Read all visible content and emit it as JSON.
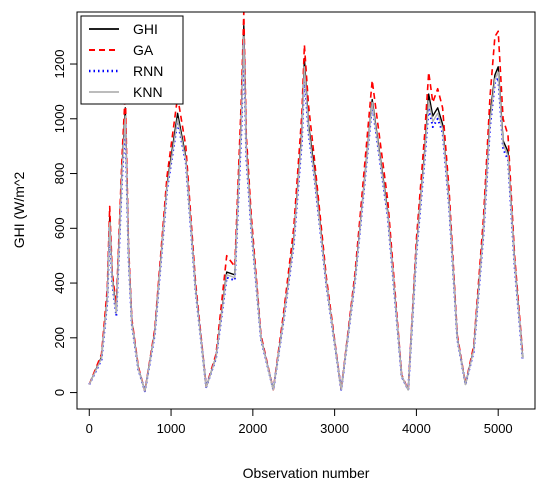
{
  "chart_data": {
    "type": "line",
    "title": "",
    "xlabel": "Observation number",
    "ylabel": "GHI (W/m^2",
    "xlim": [
      -150,
      5450
    ],
    "ylim": [
      -60,
      1390
    ],
    "xticks": [
      0,
      1000,
      2000,
      3000,
      4000,
      5000
    ],
    "yticks": [
      0,
      200,
      400,
      600,
      800,
      1000,
      1200
    ],
    "xtick_labels": [
      "0",
      "1000",
      "2000",
      "3000",
      "4000",
      "5000"
    ],
    "ytick_labels": [
      "0",
      "200",
      "400",
      "600",
      "800",
      "1000",
      "1200"
    ],
    "grid": false,
    "legend_position": "top-left",
    "series": [
      {
        "name": "GHI",
        "color": "#000000",
        "style": "solid",
        "x": [
          0,
          150,
          220,
          250,
          280,
          330,
          400,
          440,
          480,
          520,
          600,
          680,
          800,
          950,
          1080,
          1180,
          1300,
          1430,
          1550,
          1680,
          1780,
          1860,
          1890,
          1920,
          1980,
          2100,
          2250,
          2380,
          2500,
          2600,
          2630,
          2680,
          2750,
          2900,
          3080,
          3250,
          3460,
          3650,
          3820,
          3900,
          4000,
          4100,
          4150,
          4200,
          4260,
          4320,
          4400,
          4500,
          4600,
          4700,
          4820,
          4900,
          4960,
          5000,
          5060,
          5120,
          5200,
          5300
        ],
        "y": [
          30,
          130,
          350,
          640,
          420,
          300,
          820,
          1040,
          520,
          260,
          90,
          5,
          220,
          760,
          1020,
          860,
          380,
          20,
          130,
          440,
          430,
          1010,
          1340,
          900,
          620,
          200,
          10,
          280,
          560,
          960,
          1220,
          980,
          820,
          400,
          10,
          420,
          1070,
          660,
          60,
          10,
          530,
          880,
          1090,
          1010,
          1040,
          980,
          700,
          200,
          30,
          160,
          600,
          1010,
          1160,
          1190,
          920,
          880,
          480,
          130
        ]
      },
      {
        "name": "GA",
        "color": "#ff0000",
        "style": "dashed",
        "x": [
          0,
          150,
          220,
          250,
          280,
          330,
          400,
          440,
          480,
          520,
          600,
          680,
          800,
          950,
          1080,
          1180,
          1300,
          1430,
          1550,
          1680,
          1780,
          1860,
          1890,
          1920,
          1980,
          2100,
          2250,
          2380,
          2500,
          2600,
          2630,
          2680,
          2750,
          2900,
          3080,
          3250,
          3460,
          3650,
          3820,
          3900,
          4000,
          4100,
          4150,
          4200,
          4260,
          4320,
          4400,
          4500,
          4600,
          4700,
          4820,
          4900,
          4960,
          5000,
          5060,
          5120,
          5200,
          5300
        ],
        "y": [
          30,
          140,
          380,
          680,
          440,
          320,
          860,
          1100,
          540,
          270,
          95,
          5,
          230,
          790,
          1080,
          900,
          400,
          22,
          140,
          500,
          460,
          1080,
          1390,
          940,
          650,
          210,
          10,
          300,
          600,
          1020,
          1270,
          1050,
          860,
          420,
          10,
          440,
          1140,
          700,
          65,
          10,
          560,
          940,
          1170,
          1060,
          1110,
          1040,
          740,
          210,
          32,
          170,
          640,
          1080,
          1300,
          1320,
          1000,
          940,
          500,
          140
        ]
      },
      {
        "name": "RNN",
        "color": "#0000ff",
        "style": "dotted",
        "x": [
          0,
          150,
          220,
          250,
          280,
          330,
          400,
          440,
          480,
          520,
          600,
          680,
          800,
          950,
          1080,
          1180,
          1300,
          1430,
          1550,
          1680,
          1780,
          1860,
          1890,
          1920,
          1980,
          2100,
          2250,
          2380,
          2500,
          2600,
          2630,
          2680,
          2750,
          2900,
          3080,
          3250,
          3460,
          3650,
          3820,
          3900,
          4000,
          4100,
          4150,
          4200,
          4260,
          4320,
          4400,
          4500,
          4600,
          4700,
          4820,
          4900,
          4960,
          5000,
          5060,
          5120,
          5200,
          5300
        ],
        "y": [
          30,
          120,
          330,
          600,
          400,
          280,
          780,
          980,
          500,
          250,
          85,
          5,
          210,
          740,
          990,
          840,
          370,
          20,
          125,
          420,
          410,
          960,
          1280,
          860,
          600,
          195,
          10,
          270,
          540,
          920,
          1160,
          950,
          790,
          390,
          10,
          410,
          1050,
          640,
          58,
          10,
          510,
          850,
          1040,
          970,
          1000,
          950,
          680,
          195,
          30,
          150,
          580,
          970,
          1130,
          1150,
          890,
          850,
          460,
          120
        ]
      },
      {
        "name": "KNN",
        "color": "#b3b3b3",
        "style": "solid",
        "x": [
          0,
          150,
          220,
          250,
          280,
          330,
          400,
          440,
          480,
          520,
          600,
          680,
          800,
          950,
          1080,
          1180,
          1300,
          1430,
          1550,
          1680,
          1780,
          1860,
          1890,
          1920,
          1980,
          2100,
          2250,
          2380,
          2500,
          2600,
          2630,
          2680,
          2750,
          2900,
          3080,
          3250,
          3460,
          3650,
          3820,
          3900,
          4000,
          4100,
          4150,
          4200,
          4260,
          4320,
          4400,
          4500,
          4600,
          4700,
          4820,
          4900,
          4960,
          5000,
          5060,
          5120,
          5200,
          5300
        ],
        "y": [
          30,
          125,
          340,
          620,
          410,
          290,
          800,
          1010,
          510,
          255,
          88,
          5,
          215,
          750,
          1000,
          850,
          375,
          20,
          128,
          430,
          420,
          990,
          1300,
          880,
          610,
          198,
          10,
          275,
          550,
          940,
          1190,
          965,
          800,
          395,
          10,
          415,
          1060,
          650,
          60,
          10,
          520,
          865,
          1065,
          990,
          1020,
          965,
          690,
          198,
          30,
          155,
          590,
          990,
          1145,
          1170,
          905,
          865,
          470,
          125
        ]
      }
    ]
  }
}
